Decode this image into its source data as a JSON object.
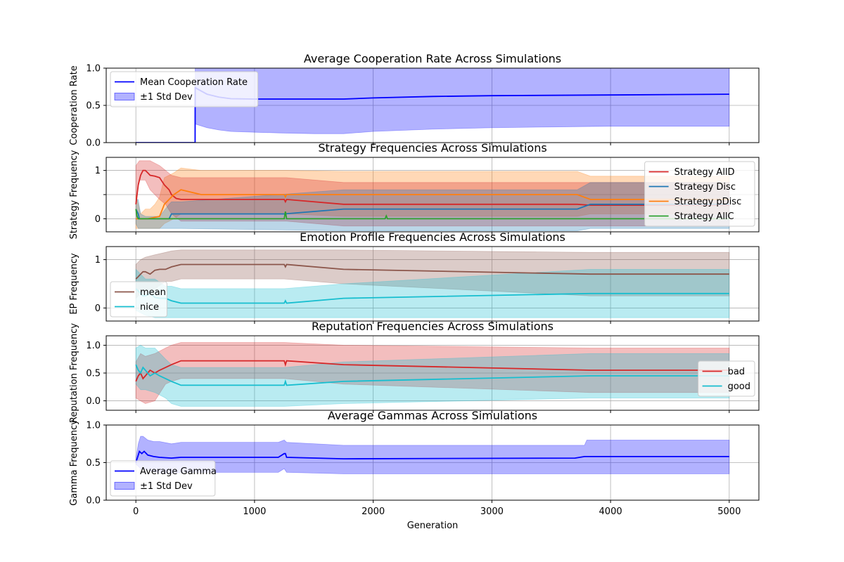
{
  "chart_data": [
    {
      "type": "line",
      "title": "Average Cooperation Rate Across Simulations",
      "xlabel": "",
      "ylabel": "Cooperation Rate",
      "xlim": [
        -250,
        5250
      ],
      "ylim": [
        0,
        1
      ],
      "yticks": [
        0.0,
        0.5,
        1.0
      ],
      "ytick_labels": [
        "0.0",
        "0.5",
        "1.0"
      ],
      "grid": true,
      "legend_position": "top-left",
      "series": [
        {
          "name": "Mean Cooperation Rate",
          "color": "#0000ff",
          "x": [
            0,
            499,
            500,
            520,
            600,
            700,
            800,
            1000,
            1200,
            1500,
            1750,
            2000,
            2500,
            3000,
            3500,
            4000,
            4500,
            5000
          ],
          "y": [
            0,
            0,
            0.74,
            0.72,
            0.65,
            0.61,
            0.59,
            0.585,
            0.585,
            0.585,
            0.585,
            0.6,
            0.62,
            0.63,
            0.635,
            0.64,
            0.645,
            0.65
          ]
        }
      ],
      "bands": [
        {
          "name": "±1 Std Dev",
          "color": "#0000ff",
          "x": [
            500,
            520,
            600,
            700,
            800,
            1000,
            1200,
            1500,
            1750,
            2000,
            2500,
            3000,
            3500,
            4000,
            4500,
            5000
          ],
          "lower": [
            0.25,
            0.24,
            0.2,
            0.17,
            0.15,
            0.14,
            0.13,
            0.12,
            0.12,
            0.15,
            0.18,
            0.2,
            0.21,
            0.22,
            0.22,
            0.22
          ],
          "upper": [
            1.23,
            1.2,
            1.1,
            1.05,
            1.03,
            1.03,
            1.04,
            1.05,
            1.05,
            1.05,
            1.06,
            1.06,
            1.06,
            1.06,
            1.07,
            1.07
          ]
        }
      ]
    },
    {
      "type": "line",
      "title": "Strategy Frequencies Across Simulations",
      "xlabel": "",
      "ylabel": "Strategy Frequency",
      "xlim": [
        -250,
        5250
      ],
      "ylim": [
        -0.27,
        1.27
      ],
      "yticks": [
        0,
        0.5,
        1
      ],
      "ytick_labels": [
        "0",
        "",
        "1"
      ],
      "grid": true,
      "legend_position": "top-right",
      "bands": [
        {
          "name": "Strategy pDisc",
          "color": "#ff7f0e",
          "x": [
            0,
            20,
            40,
            80,
            120,
            160,
            200,
            240,
            280,
            320,
            380,
            550,
            1250,
            1270,
            1750,
            3720,
            3830,
            5000
          ],
          "lower": [
            -0.2,
            -0.2,
            -0.2,
            -0.2,
            -0.2,
            -0.2,
            -0.2,
            -0.1,
            -0.05,
            0.0,
            0.1,
            0.1,
            0.1,
            0.1,
            0.05,
            0.05,
            0.1,
            0.1
          ],
          "upper": [
            0.5,
            0.3,
            0.1,
            0.2,
            0.2,
            0.3,
            0.45,
            0.85,
            0.9,
            0.95,
            1.05,
            1.0,
            1.0,
            1.0,
            0.98,
            0.98,
            0.88,
            0.88
          ]
        },
        {
          "name": "Strategy AllD",
          "color": "#d62728",
          "x": [
            0,
            30,
            80,
            120,
            200,
            250,
            300,
            380,
            550,
            1250,
            1270,
            1750,
            3720,
            3830,
            5000
          ],
          "lower": [
            0.4,
            0.8,
            0.8,
            0.6,
            0.4,
            0.3,
            0.1,
            -0.05,
            -0.05,
            -0.05,
            -0.05,
            -0.15,
            -0.15,
            -0.15,
            -0.15
          ],
          "upper": [
            1.1,
            1.2,
            1.2,
            1.2,
            1.1,
            1.0,
            0.9,
            0.85,
            0.85,
            0.85,
            0.85,
            0.75,
            0.75,
            0.75,
            0.75
          ]
        },
        {
          "name": "Strategy Disc",
          "color": "#1f77b4",
          "x": [
            0,
            20,
            40,
            80,
            200,
            280,
            300,
            380,
            1750,
            3720,
            3830,
            5000
          ],
          "lower": [
            -0.1,
            -0.2,
            -0.2,
            -0.2,
            -0.2,
            -0.2,
            -0.2,
            -0.2,
            -0.25,
            -0.25,
            -0.2,
            -0.2
          ],
          "upper": [
            0.4,
            0.4,
            0.1,
            0.05,
            0.05,
            0.3,
            0.35,
            0.35,
            0.6,
            0.6,
            0.75,
            0.75
          ]
        }
      ],
      "series": [
        {
          "name": "Strategy AllD",
          "color": "#d62728",
          "x": [
            0,
            20,
            40,
            60,
            80,
            100,
            120,
            160,
            200,
            240,
            280,
            300,
            340,
            380,
            550,
            1250,
            1260,
            1270,
            1750,
            3720,
            3830,
            5000
          ],
          "y": [
            0.3,
            0.7,
            0.9,
            1.0,
            1.0,
            0.95,
            0.9,
            0.88,
            0.85,
            0.7,
            0.6,
            0.5,
            0.42,
            0.4,
            0.4,
            0.4,
            0.35,
            0.4,
            0.3,
            0.3,
            0.28,
            0.28
          ]
        },
        {
          "name": "Strategy Disc",
          "color": "#1f77b4",
          "x": [
            0,
            20,
            30,
            60,
            200,
            280,
            300,
            380,
            1250,
            1750,
            3720,
            3830,
            5000
          ],
          "y": [
            0.2,
            0.1,
            0.0,
            0.0,
            0.0,
            0.0,
            0.1,
            0.1,
            0.1,
            0.2,
            0.2,
            0.3,
            0.3
          ]
        },
        {
          "name": "Strategy pDisc",
          "color": "#ff7f0e",
          "x": [
            0,
            20,
            40,
            100,
            200,
            240,
            280,
            320,
            380,
            550,
            1250,
            1260,
            1270,
            1750,
            3720,
            3830,
            5000
          ],
          "y": [
            0.0,
            0.0,
            0.0,
            0.0,
            0.05,
            0.3,
            0.4,
            0.5,
            0.6,
            0.5,
            0.5,
            0.45,
            0.5,
            0.5,
            0.5,
            0.4,
            0.4
          ]
        },
        {
          "name": "Strategy AllC",
          "color": "#2ca02c",
          "x": [
            0,
            10,
            20,
            40,
            100,
            500,
            1000,
            1250,
            1260,
            1270,
            1500,
            2000,
            2100,
            2110,
            2120,
            3000,
            4000,
            5000
          ],
          "y": [
            0.2,
            0.05,
            0.0,
            0.0,
            0.0,
            0.0,
            0.0,
            0.0,
            0.15,
            0.0,
            0.0,
            0.0,
            0.0,
            0.06,
            0.0,
            0.0,
            0.0,
            0.0
          ]
        }
      ]
    },
    {
      "type": "line",
      "title": "Emotion Profile Frequencies Across Simulations",
      "xlabel": "",
      "ylabel": "EP Frequency",
      "xlim": [
        -250,
        5250
      ],
      "ylim": [
        -0.27,
        1.27
      ],
      "yticks": [
        0,
        1
      ],
      "ytick_labels": [
        "0",
        "1"
      ],
      "grid": true,
      "legend_position": "lower-left",
      "bands": [
        {
          "name": "mean",
          "color": "#8c564b",
          "x": [
            0,
            40,
            80,
            160,
            250,
            300,
            380,
            1250,
            1750,
            3830,
            5000
          ],
          "lower": [
            0.2,
            0.3,
            0.35,
            0.4,
            0.55,
            0.55,
            0.6,
            0.6,
            0.5,
            0.25,
            0.25
          ],
          "upper": [
            0.9,
            1.0,
            1.05,
            1.1,
            1.15,
            1.18,
            1.2,
            1.2,
            1.2,
            1.15,
            1.15
          ]
        },
        {
          "name": "nice",
          "color": "#17becf",
          "x": [
            0,
            40,
            80,
            160,
            250,
            300,
            380,
            1250,
            1750,
            3830,
            5000
          ],
          "lower": [
            -0.05,
            -0.1,
            -0.15,
            -0.2,
            -0.2,
            -0.2,
            -0.2,
            -0.2,
            -0.2,
            -0.2,
            -0.2
          ],
          "upper": [
            0.8,
            0.7,
            0.6,
            0.6,
            0.45,
            0.45,
            0.4,
            0.4,
            0.5,
            0.8,
            0.8
          ]
        }
      ],
      "series": [
        {
          "name": "mean",
          "color": "#8c564b",
          "x": [
            0,
            20,
            40,
            60,
            80,
            120,
            160,
            200,
            250,
            300,
            380,
            1250,
            1260,
            1270,
            1750,
            3830,
            5000
          ],
          "y": [
            0.6,
            0.65,
            0.7,
            0.75,
            0.75,
            0.7,
            0.78,
            0.8,
            0.8,
            0.85,
            0.9,
            0.9,
            0.85,
            0.9,
            0.8,
            0.7,
            0.7
          ]
        },
        {
          "name": "nice",
          "color": "#17becf",
          "x": [
            0,
            20,
            40,
            60,
            80,
            120,
            160,
            200,
            250,
            300,
            380,
            1250,
            1260,
            1270,
            1750,
            3830,
            5000
          ],
          "y": [
            0.4,
            0.35,
            0.3,
            0.25,
            0.25,
            0.3,
            0.22,
            0.2,
            0.2,
            0.15,
            0.1,
            0.1,
            0.15,
            0.1,
            0.2,
            0.3,
            0.3
          ]
        }
      ]
    },
    {
      "type": "line",
      "title": "Reputation Frequencies Across Simulations",
      "xlabel": "",
      "ylabel": "Reputation Frequency",
      "xlim": [
        -250,
        5250
      ],
      "ylim": [
        -0.17,
        1.17
      ],
      "yticks": [
        0.0,
        0.5,
        1.0
      ],
      "ytick_labels": [
        "0.0",
        "0.5",
        "1.0"
      ],
      "grid": true,
      "legend_position": "right",
      "bands": [
        {
          "name": "bad",
          "color": "#d62728",
          "x": [
            0,
            40,
            80,
            160,
            250,
            300,
            380,
            1250,
            1750,
            3830,
            5000
          ],
          "lower": [
            0.05,
            0.0,
            -0.05,
            0.0,
            0.3,
            0.35,
            0.4,
            0.4,
            0.3,
            0.15,
            0.15
          ],
          "upper": [
            0.7,
            0.85,
            0.8,
            0.85,
            0.95,
            1.0,
            1.05,
            1.05,
            1.0,
            0.95,
            0.95
          ]
        },
        {
          "name": "good",
          "color": "#17becf",
          "x": [
            0,
            40,
            80,
            160,
            250,
            300,
            380,
            1250,
            1750,
            3830,
            5000
          ],
          "lower": [
            0.3,
            0.2,
            0.2,
            0.15,
            0.05,
            -0.05,
            -0.1,
            -0.1,
            -0.05,
            0.05,
            0.05
          ],
          "upper": [
            0.95,
            1.0,
            0.95,
            0.95,
            0.75,
            0.65,
            0.6,
            0.6,
            0.7,
            0.85,
            0.85
          ]
        }
      ],
      "series": [
        {
          "name": "bad",
          "color": "#d62728",
          "x": [
            0,
            20,
            40,
            60,
            80,
            120,
            160,
            200,
            250,
            300,
            380,
            1250,
            1260,
            1270,
            1750,
            3830,
            5000
          ],
          "y": [
            0.35,
            0.45,
            0.5,
            0.4,
            0.45,
            0.55,
            0.5,
            0.55,
            0.6,
            0.65,
            0.72,
            0.72,
            0.65,
            0.72,
            0.65,
            0.55,
            0.55
          ]
        },
        {
          "name": "good",
          "color": "#17becf",
          "x": [
            0,
            20,
            40,
            60,
            80,
            120,
            160,
            200,
            250,
            300,
            380,
            1250,
            1260,
            1270,
            1750,
            3830,
            5000
          ],
          "y": [
            0.65,
            0.55,
            0.5,
            0.6,
            0.55,
            0.45,
            0.5,
            0.45,
            0.4,
            0.35,
            0.28,
            0.28,
            0.35,
            0.28,
            0.35,
            0.45,
            0.45
          ]
        }
      ]
    },
    {
      "type": "line",
      "title": "Average Gammas Across Simulations",
      "xlabel": "Generation",
      "ylabel": "Gamma Frequency",
      "xlim": [
        -250,
        5250
      ],
      "ylim": [
        0,
        1
      ],
      "yticks": [
        0.0,
        0.5,
        1.0
      ],
      "ytick_labels": [
        "0.0",
        "0.5",
        "1.0"
      ],
      "xticks": [
        0,
        1000,
        2000,
        3000,
        4000,
        5000
      ],
      "xtick_labels": [
        "0",
        "1000",
        "2000",
        "3000",
        "4000",
        "5000"
      ],
      "grid": true,
      "legend_position": "lower-left",
      "series": [
        {
          "name": "Average Gamma",
          "color": "#0000ff",
          "x": [
            0,
            10,
            20,
            30,
            50,
            70,
            100,
            150,
            200,
            300,
            380,
            550,
            1200,
            1250,
            1260,
            1270,
            1750,
            3700,
            3780,
            5000
          ],
          "y": [
            0.5,
            0.55,
            0.6,
            0.65,
            0.62,
            0.65,
            0.6,
            0.58,
            0.57,
            0.56,
            0.57,
            0.57,
            0.57,
            0.62,
            0.62,
            0.57,
            0.55,
            0.56,
            0.58,
            0.58
          ]
        }
      ],
      "bands": [
        {
          "name": "±1 Std Dev",
          "color": "#0000ff",
          "x": [
            0,
            20,
            40,
            60,
            100,
            150,
            200,
            300,
            380,
            550,
            1200,
            1250,
            1270,
            1750,
            3780,
            3800,
            5000
          ],
          "lower": [
            0.48,
            0.45,
            0.42,
            0.42,
            0.4,
            0.38,
            0.36,
            0.36,
            0.37,
            0.37,
            0.37,
            0.42,
            0.37,
            0.35,
            0.35,
            0.35,
            0.35
          ],
          "upper": [
            0.55,
            0.75,
            0.85,
            0.85,
            0.8,
            0.78,
            0.78,
            0.75,
            0.77,
            0.77,
            0.77,
            0.8,
            0.77,
            0.73,
            0.73,
            0.8,
            0.8
          ]
        }
      ]
    }
  ],
  "colors": {
    "grid": "#b0b0b0",
    "axis": "#000000"
  }
}
